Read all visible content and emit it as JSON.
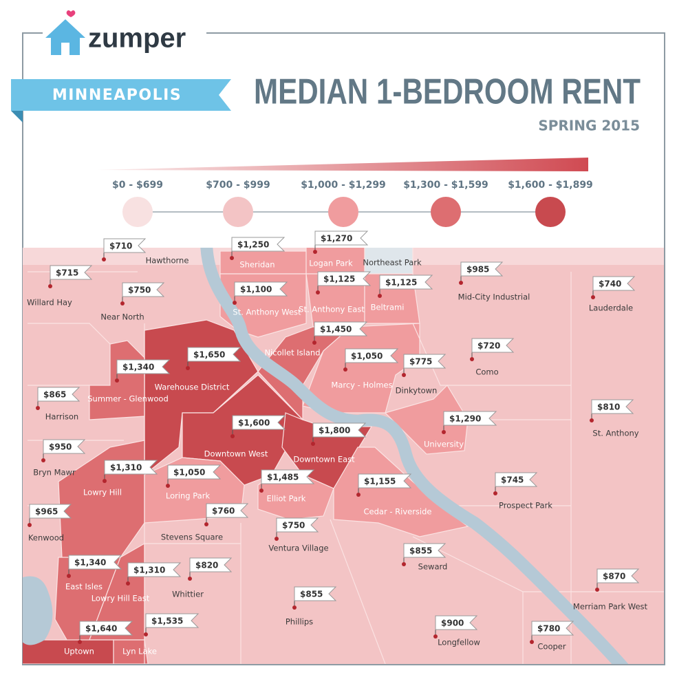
{
  "header": {
    "brand": "zumper",
    "city": "MINNEAPOLIS",
    "title": "MEDIAN 1-BEDROOM RENT",
    "subtitle": "SPRING 2015"
  },
  "legend": [
    {
      "label": "$0 - $699",
      "color": "#f8e1e1"
    },
    {
      "label": "$700 - $999",
      "color": "#f3c4c5"
    },
    {
      "label": "$1,000 - $1,299",
      "color": "#f09c9e"
    },
    {
      "label": "$1,300 - $1,599",
      "color": "#dd6e71"
    },
    {
      "label": "$1,600 - $1,899",
      "color": "#c84a4f"
    }
  ],
  "neighborhoods": [
    {
      "name": "Hawthorne",
      "rent": "$710"
    },
    {
      "name": "Willard Hay",
      "rent": "$715"
    },
    {
      "name": "Near North",
      "rent": "$750"
    },
    {
      "name": "Sheridan",
      "rent": "$1,250"
    },
    {
      "name": "Logan Park",
      "rent": "$1,270"
    },
    {
      "name": "Northeast Park"
    },
    {
      "name": "St. Anthony West",
      "rent": "$1,100"
    },
    {
      "name": "St. Anthony East",
      "rent": "$1,125"
    },
    {
      "name": "Beltrami",
      "rent": "$1,125"
    },
    {
      "name": "Mid-City Industrial",
      "rent": "$985"
    },
    {
      "name": "Lauderdale",
      "rent": "$740"
    },
    {
      "name": "Nicollet Island",
      "rent": "$1,450"
    },
    {
      "name": "Warehouse District",
      "rent": "$1,650"
    },
    {
      "name": "Summer - Glenwood",
      "rent": "$1,340"
    },
    {
      "name": "Marcy - Holmes",
      "rent": "$1,050"
    },
    {
      "name": "Dinkytown",
      "rent": "$775"
    },
    {
      "name": "Como",
      "rent": "$720"
    },
    {
      "name": "Harrison",
      "rent": "$865"
    },
    {
      "name": "St. Anthony",
      "rent": "$810"
    },
    {
      "name": "Downtown West",
      "rent": "$1,600"
    },
    {
      "name": "Downtown East",
      "rent": "$1,800"
    },
    {
      "name": "University",
      "rent": "$1,290"
    },
    {
      "name": "Bryn Mawr",
      "rent": "$950"
    },
    {
      "name": "Lowry Hill",
      "rent": "$1,310"
    },
    {
      "name": "Loring Park",
      "rent": "$1,050"
    },
    {
      "name": "Elliot Park",
      "rent": "$1,485"
    },
    {
      "name": "Cedar - Riverside",
      "rent": "$1,155"
    },
    {
      "name": "Prospect Park",
      "rent": "$745"
    },
    {
      "name": "Kenwood",
      "rent": "$965"
    },
    {
      "name": "Stevens Square",
      "rent": "$760"
    },
    {
      "name": "Ventura Village",
      "rent": "$750"
    },
    {
      "name": "Seward",
      "rent": "$855"
    },
    {
      "name": "East Isles",
      "rent": "$1,340"
    },
    {
      "name": "Lowry Hill East",
      "rent": "$1,310"
    },
    {
      "name": "Whittier",
      "rent": "$820"
    },
    {
      "name": "Merriam Park West",
      "rent": "$870"
    },
    {
      "name": "Phillips",
      "rent": "$855"
    },
    {
      "name": "Longfellow",
      "rent": "$900"
    },
    {
      "name": "Cooper",
      "rent": "$780"
    },
    {
      "name": "Uptown",
      "rent": "$1,640"
    },
    {
      "name": "Lyn Lake",
      "rent": "$1,535"
    }
  ]
}
